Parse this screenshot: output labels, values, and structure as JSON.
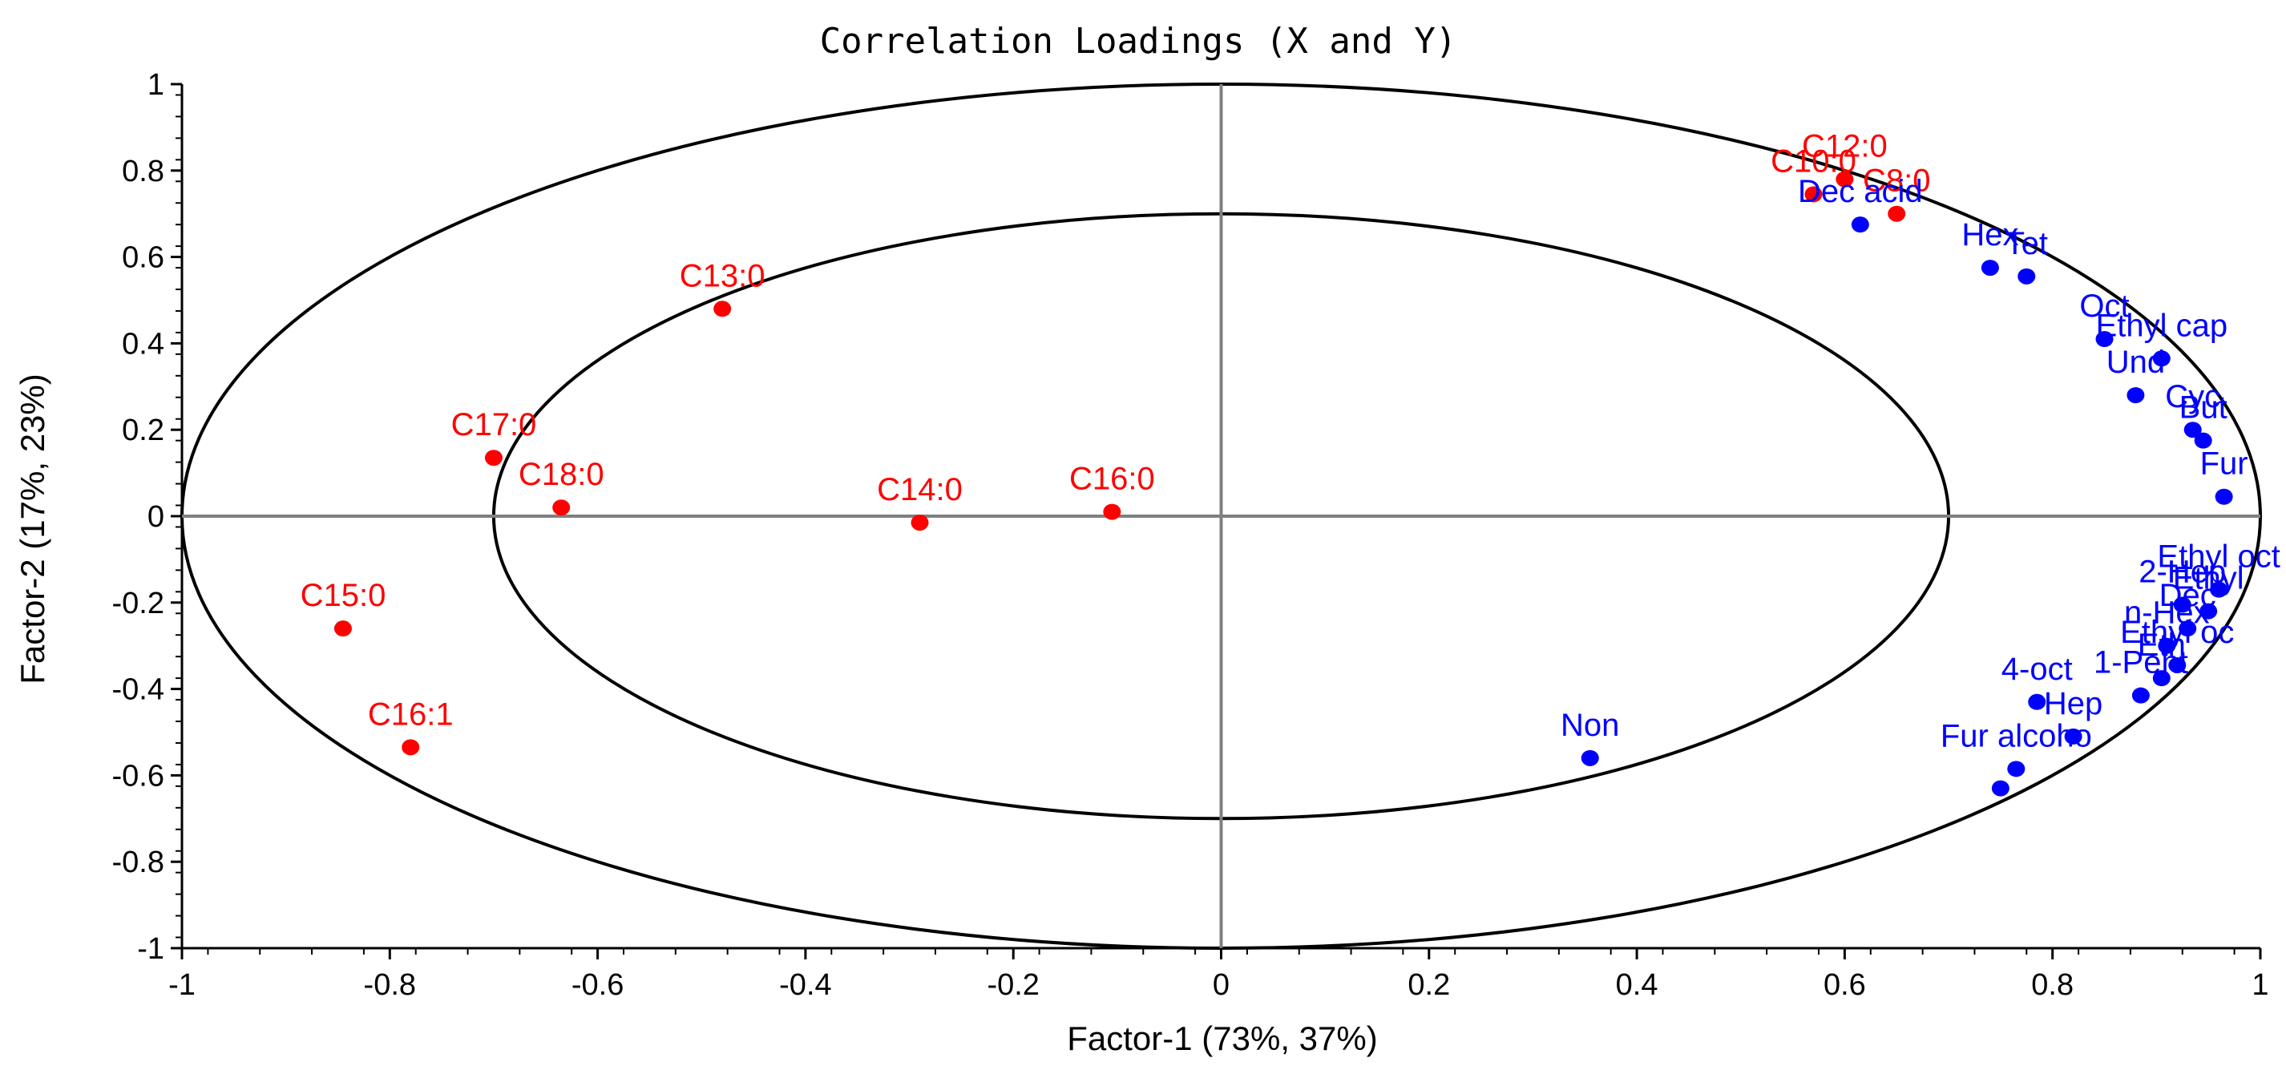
{
  "chart_data": {
    "type": "scatter",
    "title": "Correlation Loadings (X and Y)",
    "xlabel": "Factor-1 (73%, 37%)",
    "ylabel": "Factor-2 (17%, 23%)",
    "xlim": [
      -1,
      1
    ],
    "ylim": [
      -1,
      1
    ],
    "xticks": [
      -1,
      -0.8,
      -0.6,
      -0.4,
      -0.2,
      0,
      0.2,
      0.4,
      0.6,
      0.8,
      1
    ],
    "xtick_labels": [
      "-1",
      "-0.8",
      "-0.6",
      "-0.4",
      "-0.2",
      "0",
      "0.2",
      "0.4",
      "0.6",
      "0.8",
      "1"
    ],
    "yticks": [
      1,
      0.8,
      0.6,
      0.4,
      0.2,
      0,
      -0.2,
      -0.4,
      -0.6,
      -0.8,
      -1
    ],
    "ytick_labels": [
      "1",
      "0.8",
      "0.6",
      "0.4",
      "0.2",
      "0",
      "-0.2",
      "-0.4",
      "-0.6",
      "-0.8",
      "-1"
    ],
    "ellipses": [
      {
        "name": "outer",
        "radius": 1.0
      },
      {
        "name": "inner",
        "radius": 0.7
      }
    ],
    "series": [
      {
        "name": "X",
        "color": "#ff0000",
        "points": [
          {
            "label": "C10:0",
            "x": 0.57,
            "y": 0.745
          },
          {
            "label": "C12:0",
            "x": 0.6,
            "y": 0.78
          },
          {
            "label": "C8:0",
            "x": 0.65,
            "y": 0.7
          },
          {
            "label": "C13:0",
            "x": -0.48,
            "y": 0.48
          },
          {
            "label": "C17:0",
            "x": -0.7,
            "y": 0.135
          },
          {
            "label": "C18:0",
            "x": -0.635,
            "y": 0.02
          },
          {
            "label": "C14:0",
            "x": -0.29,
            "y": -0.015
          },
          {
            "label": "C16:0",
            "x": -0.105,
            "y": 0.01
          },
          {
            "label": "C15:0",
            "x": -0.845,
            "y": -0.26
          },
          {
            "label": "C16:1",
            "x": -0.78,
            "y": -0.535
          }
        ]
      },
      {
        "name": "Y",
        "color": "#0000ff",
        "points": [
          {
            "label": "Dec acid",
            "x": 0.615,
            "y": 0.675
          },
          {
            "label": "Hex",
            "x": 0.74,
            "y": 0.575
          },
          {
            "label": "Tet",
            "x": 0.775,
            "y": 0.555
          },
          {
            "label": "Oct",
            "x": 0.85,
            "y": 0.41
          },
          {
            "label": "Ethyl cap",
            "x": 0.905,
            "y": 0.365
          },
          {
            "label": "Und",
            "x": 0.88,
            "y": 0.28
          },
          {
            "label": "Cyc",
            "x": 0.935,
            "y": 0.2
          },
          {
            "label": "But",
            "x": 0.945,
            "y": 0.175
          },
          {
            "label": "Fur",
            "x": 0.965,
            "y": 0.045
          },
          {
            "label": "Ethyl oct",
            "x": 0.96,
            "y": -0.17
          },
          {
            "label": "Ethyl",
            "x": 0.95,
            "y": -0.22
          },
          {
            "label": "2-Hep",
            "x": 0.925,
            "y": -0.205
          },
          {
            "label": "Dec",
            "x": 0.93,
            "y": -0.26
          },
          {
            "label": "n-Hex",
            "x": 0.91,
            "y": -0.3
          },
          {
            "label": "Ethyl oc",
            "x": 0.92,
            "y": -0.345
          },
          {
            "label": "Eth",
            "x": 0.905,
            "y": -0.375
          },
          {
            "label": "1-Pent",
            "x": 0.885,
            "y": -0.415
          },
          {
            "label": "4-oct",
            "x": 0.785,
            "y": -0.43
          },
          {
            "label": "Hep",
            "x": 0.82,
            "y": -0.51
          },
          {
            "label": "Fur alcoho",
            "x": 0.765,
            "y": -0.585
          },
          {
            "label": "Non",
            "x": 0.355,
            "y": -0.56
          },
          {
            "label": "",
            "x": 0.75,
            "y": -0.63
          }
        ]
      }
    ]
  }
}
